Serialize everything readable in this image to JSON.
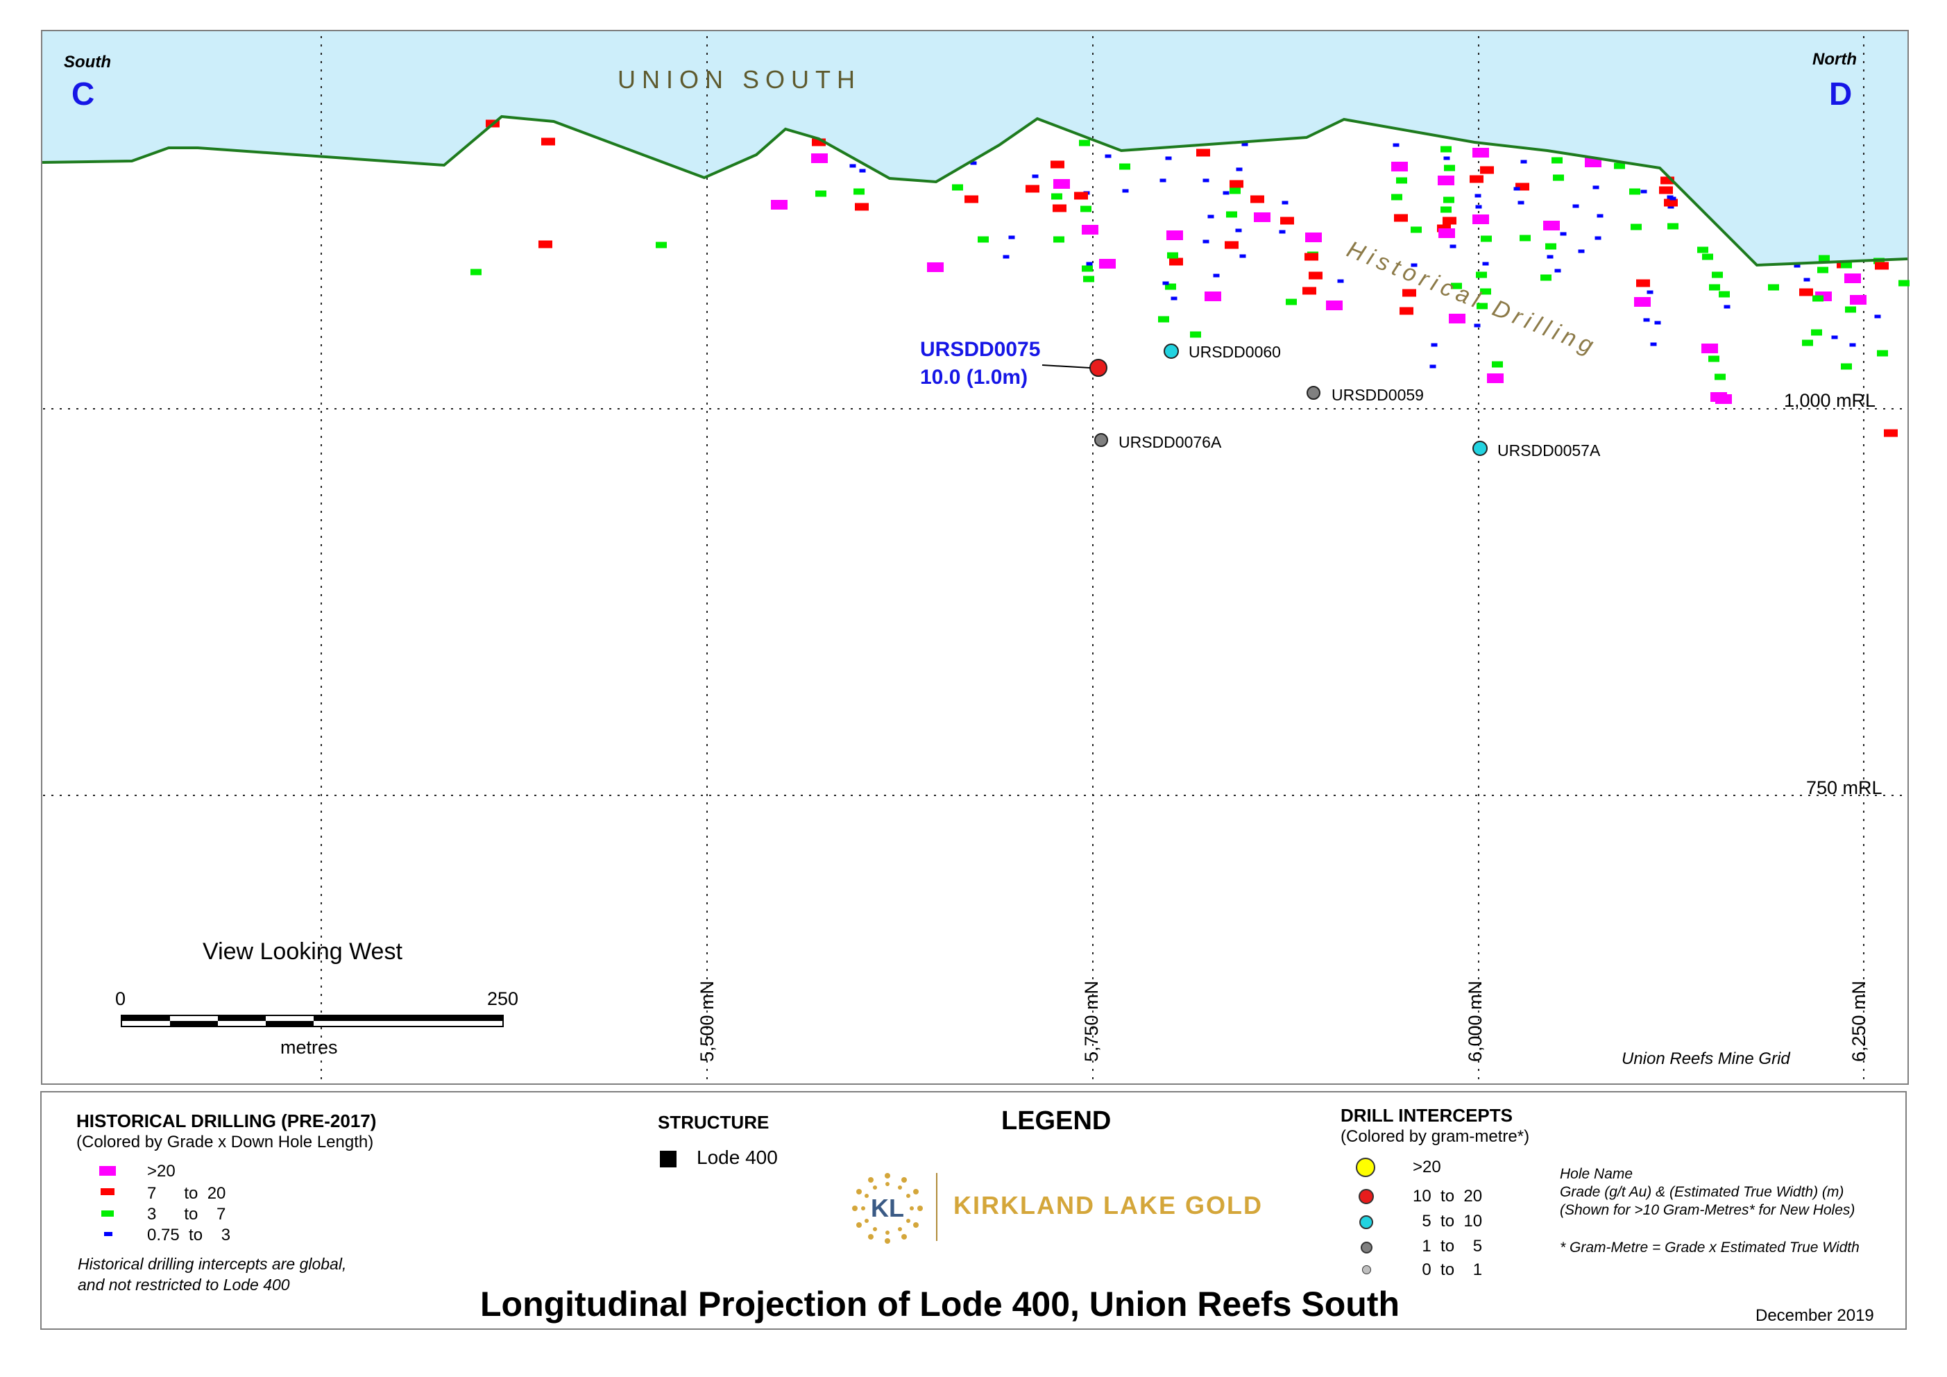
{
  "map": {
    "south_label": "South",
    "south_letter": "C",
    "north_label": "North",
    "north_letter": "D",
    "area_label": "UNION SOUTH",
    "historical_label": "Historical Drilling",
    "rl_labels": [
      "1,000 mRL",
      "750 mRL"
    ],
    "northing_labels": [
      "5,500 mN",
      "5,750 mN",
      "6,000 mN",
      "6,250 mN"
    ],
    "view_label": "View Looking West",
    "scale": {
      "min": "0",
      "max": "250",
      "unit": "metres"
    },
    "grid_label": "Union Reefs Mine Grid",
    "colors": {
      "sky": "#cdeefa",
      "surface": "#1e7b1e",
      "grid": "#222222"
    }
  },
  "new_holes": [
    {
      "name": "URSDD0075",
      "class": "10 to 20",
      "color": "#e81c1c",
      "highlight": "10.0 (1.0m)"
    },
    {
      "name": "URSDD0060",
      "class": "5 to 10",
      "color": "#22d3e0"
    },
    {
      "name": "URSDD0059",
      "class": "1 to 5",
      "color": "#808080"
    },
    {
      "name": "URSDD0076A",
      "class": "1 to 5",
      "color": "#808080"
    },
    {
      "name": "URSDD0057A",
      "class": "5 to 10",
      "color": "#22d3e0"
    }
  ],
  "legend": {
    "title": "LEGEND",
    "historical": {
      "title": "HISTORICAL DRILLING (PRE-2017)",
      "subtitle": "(Colored by Grade x Down Hole Length)",
      "items": [
        {
          "label": ">20",
          "color": "#ff00ff"
        },
        {
          "label": "7      to  20",
          "color": "#ff0000"
        },
        {
          "label": "3      to    7",
          "color": "#00ee00"
        },
        {
          "label": "0.75  to    3",
          "color": "#0000ff"
        }
      ],
      "note_1": "Historical drilling intercepts are global,",
      "note_2": "and not restricted to Lode 400"
    },
    "structure": {
      "title": "STRUCTURE",
      "item": "Lode 400"
    },
    "intercepts": {
      "title": "DRILL INTERCEPTS",
      "subtitle": "(Colored by gram-metre*)",
      "items": [
        {
          "label": ">20",
          "color": "#ffff00"
        },
        {
          "label": "10  to  20",
          "color": "#e81c1c"
        },
        {
          "label": "  5  to  10",
          "color": "#22d3e0"
        },
        {
          "label": "  1  to    5",
          "color": "#808080"
        },
        {
          "label": "  0  to    1",
          "color": "#bfbfbf"
        }
      ],
      "note_1": "Hole Name",
      "note_2": "Grade (g/t Au) & (Estimated True Width) (m)",
      "note_3": "(Shown for >10 Gram-Metres* for New Holes)",
      "note_4": "* Gram-Metre = Grade x Estimated True Width"
    },
    "company": "KIRKLAND LAKE GOLD",
    "logo_letters": "KL",
    "main_title": "Longitudinal Projection of Lode 400, Union Reefs South",
    "date": "December 2019"
  }
}
